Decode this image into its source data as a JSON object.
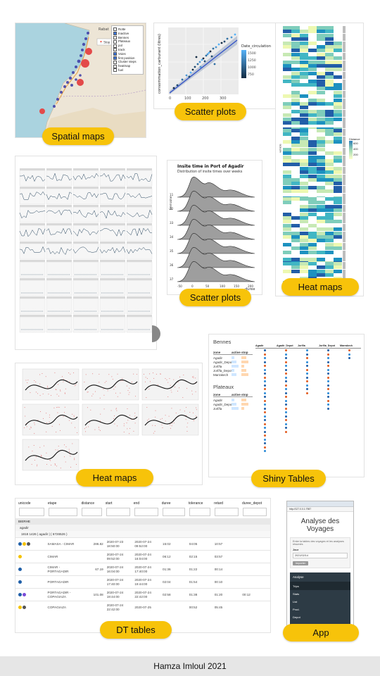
{
  "labels": {
    "spatial_maps": "Spatial maps",
    "scatter_plots_1": "Scatter plots",
    "heat_maps_1": "Heat maps",
    "scatter_plots_2": "Scatter plots",
    "heat_maps_2": "Heat maps",
    "shiny_tables": "Shiny Tables",
    "dt_tables": "DT tables",
    "app": "App"
  },
  "footer": {
    "author": "Hamza Imloul 2021"
  },
  "map": {
    "layers": [
      "Rotte",
      "Inactive",
      "Bennes",
      "Plateaux",
      "pol",
      "track",
      "Voies",
      "first position",
      "Cluster steps",
      "heatmap",
      "fuel"
    ],
    "city_label": "Rabat"
  },
  "scatter1": {
    "ylabel": "consommation_carburant (litres)",
    "legend_title": "Date_circulation",
    "legend_ticks": [
      "1500",
      "1250",
      "1000",
      "750"
    ],
    "x_ticks": [
      "0",
      "100",
      "200",
      "300"
    ]
  },
  "ridge": {
    "title": "Insite time in Port of Agadir",
    "subtitle": "Distribution of insite times over weeks",
    "ylabel": "Semaine",
    "xlabel": "duree",
    "x_ticks": [
      "-50",
      "0",
      "50",
      "100",
      "150",
      "200"
    ],
    "y_ticks": [
      "11",
      "32",
      "33",
      "34",
      "35",
      "36",
      "37"
    ]
  },
  "shiny": {
    "section1": "Bennes",
    "section2": "Plateaux",
    "cols": [
      "zone",
      "active",
      "stop"
    ],
    "zones1": [
      "Agadir",
      "Agadir_Depot",
      "Jorf/la",
      "Jorf/la_Depot",
      "Marrakech"
    ],
    "zones2": [
      "Agadir",
      "Agadir_Depot",
      "Jorf/la"
    ],
    "right_cols": [
      "Agadir",
      "Agadir_Depot",
      "Jorf/la",
      "Jorf/la_Depot",
      "Marrakech"
    ]
  },
  "dt": {
    "headers": [
      "unicode",
      "etape",
      "distance",
      "start",
      "end",
      "duree",
      "tolerance",
      "retard",
      "duree_depot"
    ],
    "group": "BIERHE",
    "subgroup": "agadir",
    "vehicle": "1818 1426 | agadir | ( 6726526 )",
    "rows": [
      {
        "etape": "SAMASA - CIMAR",
        "distance": "286.82",
        "start": "2020-07-23 18:50:00",
        "end": "2020-07-24 09:52:00",
        "duree": "15:02",
        "tolerance": "04:05",
        "retard": "10:57",
        "depot": ""
      },
      {
        "etape": "CIMAR",
        "distance": "",
        "start": "2020-07-24 09:52:00",
        "end": "2020-07-24 16:04:00",
        "duree": "06:12",
        "tolerance": "02:15",
        "retard": "03:57",
        "depot": ""
      },
      {
        "etape": "CIMAR - PORTAGADIR",
        "distance": "67.19",
        "start": "2020-07-24 16:04:00",
        "end": "2020-07-24 17:40:00",
        "duree": "01:36",
        "tolerance": "01:22",
        "retard": "00:14",
        "depot": ""
      },
      {
        "etape": "PORTAGADIR",
        "distance": "",
        "start": "2020-07-24 17:40:00",
        "end": "2020-07-24 19:44:00",
        "duree": "02:04",
        "tolerance": "01:54",
        "retard": "00:10",
        "depot": ""
      },
      {
        "etape": "PORTAGADIR - COPAGIAZA",
        "distance": "101.08",
        "start": "2020-07-24 19:44:00",
        "end": "2020-07-24 22:42:00",
        "duree": "02:58",
        "tolerance": "01:38",
        "retard": "01:20",
        "depot": "00:12"
      },
      {
        "etape": "COPAGIAZA",
        "distance": "",
        "start": "2020-07-24 22:42:00",
        "end": "2020-07-25",
        "duree": "",
        "tolerance": "00:52",
        "retard": "05:45",
        "depot": ""
      }
    ]
  },
  "app": {
    "title": "Analyse des Voyages",
    "url": "http://127.0.0.1:7987",
    "description": "Enter la tables des voyages et les analyses résumés",
    "date_label": "Jour",
    "date_value": "2021/02/14",
    "button": "Importer",
    "menu_header": "Analyse",
    "menu_items": [
      "Trips",
      "Stats",
      "List",
      "Prod.",
      "Depot"
    ]
  },
  "heat": {
    "legend_title": "Distance",
    "legend_ticks": [
      "600",
      "400",
      "200"
    ],
    "side_label": "vehicle"
  },
  "colors": {
    "accent": "#f7c30a",
    "footer_bg": "#e6e6e6",
    "map_land": "#ede5d6",
    "map_sea": "#aad3df",
    "menu_dark": "#2d3b45"
  }
}
